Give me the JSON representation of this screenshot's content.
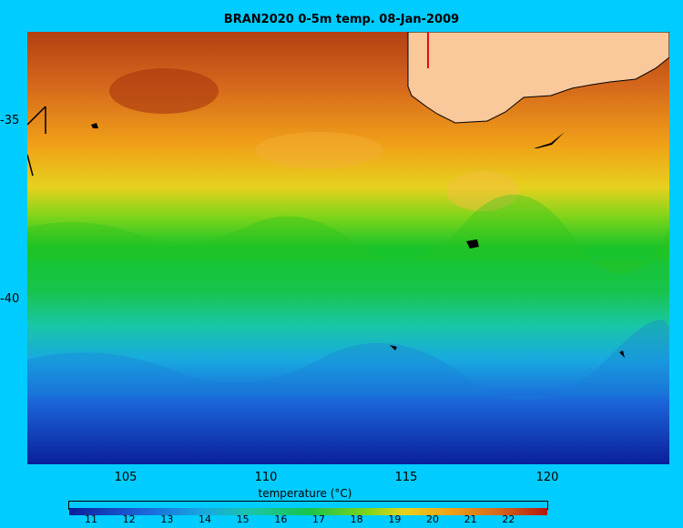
{
  "title": "BRAN2020 0-5m temp. 08-Jan-2009",
  "axes": {
    "y_ticks": [
      "-35",
      "-40"
    ],
    "x_ticks": [
      "105",
      "110",
      "115",
      "120"
    ]
  },
  "colorbar": {
    "label": "temperature (°C)",
    "ticks": [
      "11",
      "12",
      "13",
      "14",
      "15",
      "16",
      "17",
      "18",
      "19",
      "20",
      "21",
      "22"
    ],
    "min": 10.4,
    "max": 23
  },
  "colors": {
    "background": "#00ccff",
    "land": "#f9c89b",
    "warm": "#c8501a",
    "cold": "#0a1f9a"
  }
}
